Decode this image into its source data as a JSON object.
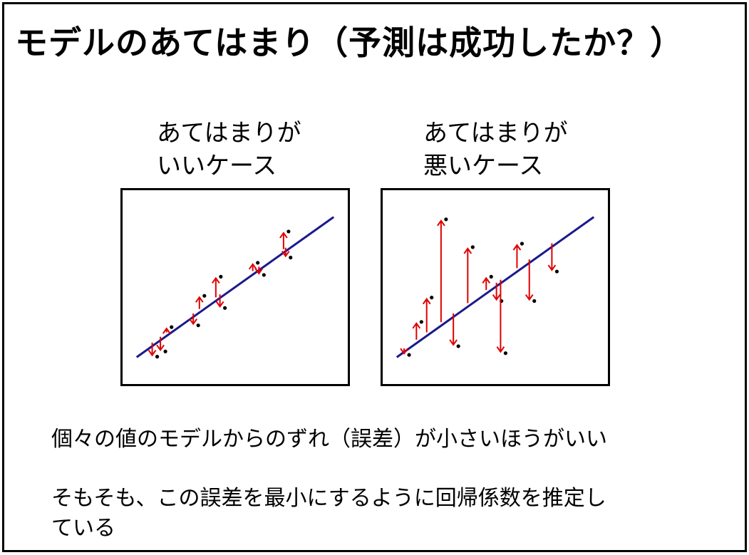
{
  "title": "モデルのあてはまり（予測は成功したか？）",
  "captions": {
    "good": {
      "line1": "あてはまりが",
      "line2": "いいケース"
    },
    "bad": {
      "line1": "あてはまりが",
      "line2": "悪いケース"
    }
  },
  "notes": {
    "note1": "個々の値のモデルからのずれ（誤差）が小さいほうがいい",
    "note2_line1": "そもそも、この誤差を最小にするように回帰係数を推定し",
    "note2_line2": "ている"
  },
  "colors": {
    "regression_line": "#1a1a8c",
    "residual_arrow": "#e00000",
    "point": "#000000"
  },
  "chart_data": [
    {
      "type": "scatter",
      "title": "",
      "xlabel": "",
      "ylabel": "",
      "xlim": [
        0,
        100
      ],
      "ylim": [
        0,
        100
      ],
      "regression": {
        "intercept": 8.0,
        "slope": 0.84
      },
      "points": [
        {
          "x": 12,
          "y": 10
        },
        {
          "x": 16,
          "y": 13
        },
        {
          "x": 19,
          "y": 27
        },
        {
          "x": 32,
          "y": 28
        },
        {
          "x": 35,
          "y": 45
        },
        {
          "x": 43,
          "y": 56
        },
        {
          "x": 45,
          "y": 38
        },
        {
          "x": 61,
          "y": 64
        },
        {
          "x": 64,
          "y": 57
        },
        {
          "x": 76,
          "y": 82
        },
        {
          "x": 77,
          "y": 67
        }
      ]
    },
    {
      "type": "scatter",
      "title": "",
      "xlabel": "",
      "ylabel": "",
      "xlim": [
        0,
        100
      ],
      "ylim": [
        0,
        100
      ],
      "regression": {
        "intercept": 8.0,
        "slope": 0.84
      },
      "points": [
        {
          "x": 8,
          "y": 11
        },
        {
          "x": 14,
          "y": 30
        },
        {
          "x": 19,
          "y": 44
        },
        {
          "x": 26,
          "y": 89
        },
        {
          "x": 32,
          "y": 16
        },
        {
          "x": 39,
          "y": 73
        },
        {
          "x": 48,
          "y": 56
        },
        {
          "x": 53,
          "y": 42
        },
        {
          "x": 55,
          "y": 12
        },
        {
          "x": 63,
          "y": 75
        },
        {
          "x": 69,
          "y": 42
        },
        {
          "x": 80,
          "y": 59
        }
      ]
    }
  ]
}
